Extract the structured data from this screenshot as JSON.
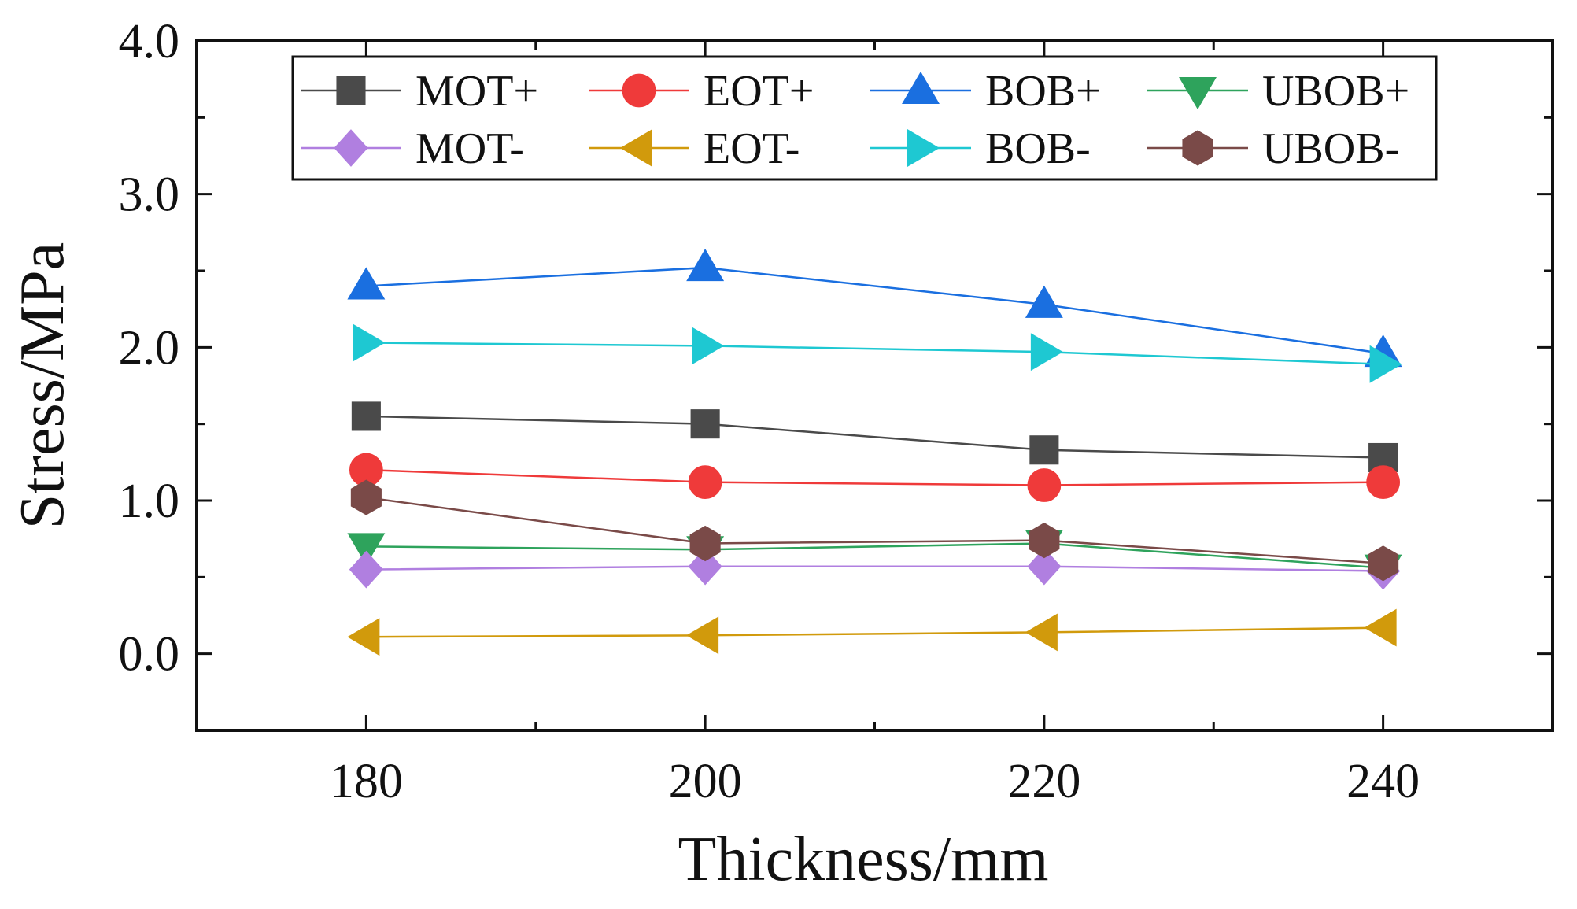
{
  "chart_data": {
    "type": "line",
    "xlabel": "Thickness/mm",
    "ylabel": "Stress/MPa",
    "xlim": [
      170,
      250
    ],
    "ylim": [
      -0.5,
      4.0
    ],
    "x": [
      180,
      200,
      220,
      240
    ],
    "xticks": [
      180,
      200,
      220,
      240
    ],
    "xtick_labels": [
      "180",
      "200",
      "220",
      "240"
    ],
    "yticks": [
      0.0,
      1.0,
      2.0,
      3.0,
      4.0
    ],
    "ytick_labels": [
      "0.0",
      "1.0",
      "2.0",
      "3.0",
      "4.0"
    ],
    "grid": false,
    "legend_position": "top",
    "series": [
      {
        "name": "MOT+",
        "color": "#4a4a4a",
        "marker": "square",
        "values": [
          1.55,
          1.5,
          1.33,
          1.28
        ]
      },
      {
        "name": "EOT+",
        "color": "#ef3a3a",
        "marker": "circle",
        "values": [
          1.2,
          1.12,
          1.1,
          1.12
        ]
      },
      {
        "name": "BOB+",
        "color": "#1a6fe0",
        "marker": "triangle-up",
        "values": [
          2.4,
          2.52,
          2.28,
          1.96
        ]
      },
      {
        "name": "UBOB+",
        "color": "#2ea35c",
        "marker": "triangle-down",
        "values": [
          0.7,
          0.68,
          0.72,
          0.56
        ]
      },
      {
        "name": "MOT-",
        "color": "#b07fe0",
        "marker": "diamond",
        "values": [
          0.55,
          0.57,
          0.57,
          0.54
        ]
      },
      {
        "name": "EOT-",
        "color": "#d19a0c",
        "marker": "triangle-left",
        "values": [
          0.11,
          0.12,
          0.14,
          0.17
        ]
      },
      {
        "name": "BOB-",
        "color": "#1ec8d2",
        "marker": "triangle-right",
        "values": [
          2.03,
          2.01,
          1.97,
          1.89
        ]
      },
      {
        "name": "UBOB-",
        "color": "#7a4a48",
        "marker": "hexagon",
        "values": [
          1.02,
          0.72,
          0.74,
          0.59
        ]
      }
    ]
  }
}
